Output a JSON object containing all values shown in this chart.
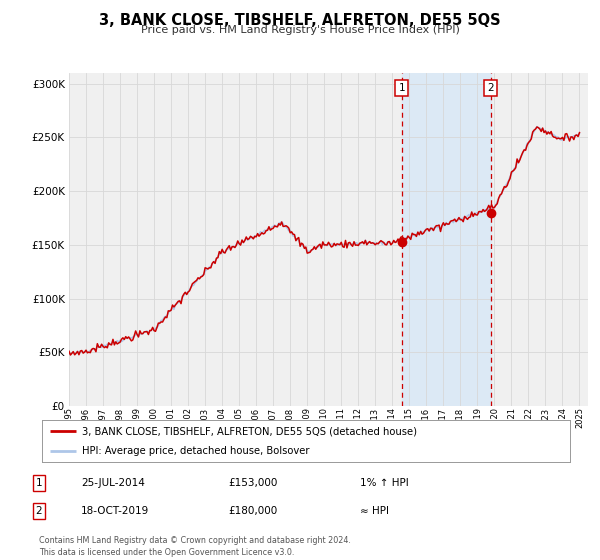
{
  "title": "3, BANK CLOSE, TIBSHELF, ALFRETON, DE55 5QS",
  "subtitle": "Price paid vs. HM Land Registry's House Price Index (HPI)",
  "legend_line1": "3, BANK CLOSE, TIBSHELF, ALFRETON, DE55 5QS (detached house)",
  "legend_line2": "HPI: Average price, detached house, Bolsover",
  "footer": "Contains HM Land Registry data © Crown copyright and database right 2024.\nThis data is licensed under the Open Government Licence v3.0.",
  "sale1_date": "25-JUL-2014",
  "sale1_price": "£153,000",
  "sale1_hpi": "1% ↑ HPI",
  "sale2_date": "18-OCT-2019",
  "sale2_price": "£180,000",
  "sale2_hpi": "≈ HPI",
  "hpi_color": "#aec6e8",
  "price_color": "#cc0000",
  "bg_color": "#ffffff",
  "plot_bg_color": "#f0f0f0",
  "highlight_bg": "#dce9f5",
  "sale1_x_year": 2014.56,
  "sale2_x_year": 2019.79,
  "sale1_price_val": 153000,
  "sale2_price_val": 180000,
  "ylim_min": 0,
  "ylim_max": 310000,
  "xlim_min": 1995.0,
  "xlim_max": 2025.5
}
